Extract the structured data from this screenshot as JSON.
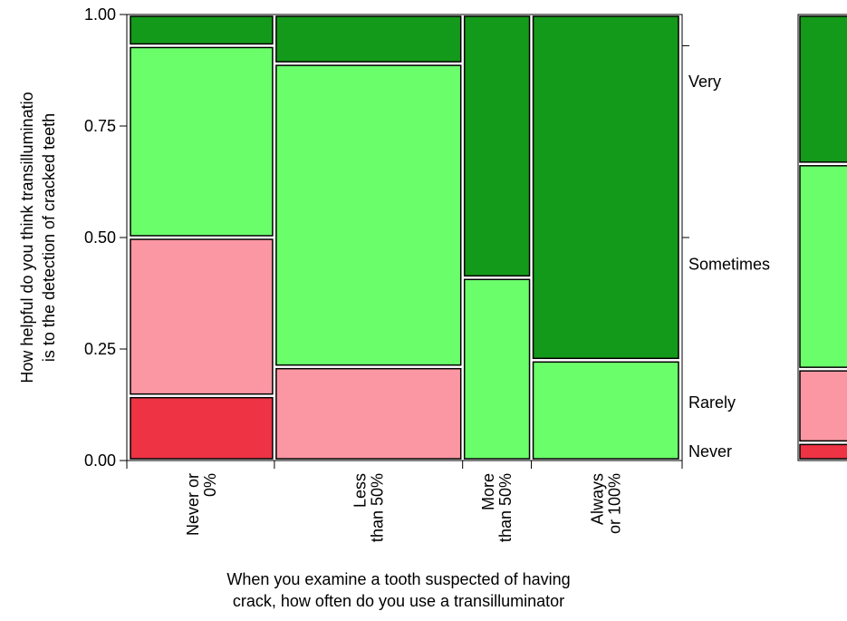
{
  "chart_data": {
    "type": "mosaic",
    "xlabel": [
      "When you examine a tooth suspected of having",
      "crack, how often do you use a transilluminator"
    ],
    "ylabel": [
      "How helpful do you think transilluminatio",
      "is to the detection of cracked teeth"
    ],
    "ylim": [
      0,
      1
    ],
    "yticks": [
      "0.00",
      "0.25",
      "0.50",
      "0.75",
      "1.00"
    ],
    "categories": [
      {
        "label": [
          "Never or",
          "0%"
        ],
        "width_share": 0.3175
      },
      {
        "label": [
          "Less",
          "than 50%"
        ],
        "width_share": 0.4124
      },
      {
        "label": [
          "More",
          "than 50%"
        ],
        "width_share": 0.1454
      },
      {
        "label": [
          "Always",
          "or 100%"
        ],
        "width_share": 0.3247
      }
    ],
    "levels": [
      {
        "name": "Never",
        "color": "#ee3344"
      },
      {
        "name": "Rarely",
        "color": "#fb97a3"
      },
      {
        "name": "Sometimes",
        "color": "#6bfe6b"
      },
      {
        "name": "Very",
        "color": "#139a1a"
      }
    ],
    "proportions": [
      [
        0.145,
        0.355,
        0.43,
        0.07
      ],
      [
        0.0,
        0.21,
        0.68,
        0.11
      ],
      [
        0.0,
        0.0,
        0.41,
        0.59
      ],
      [
        0.0,
        0.0,
        0.225,
        0.775
      ]
    ],
    "right_labels": [
      "Very",
      "Sometimes",
      "Rarely",
      "Never"
    ],
    "partial_panel": [
      0.04,
      0.165,
      0.46,
      0.335
    ]
  }
}
